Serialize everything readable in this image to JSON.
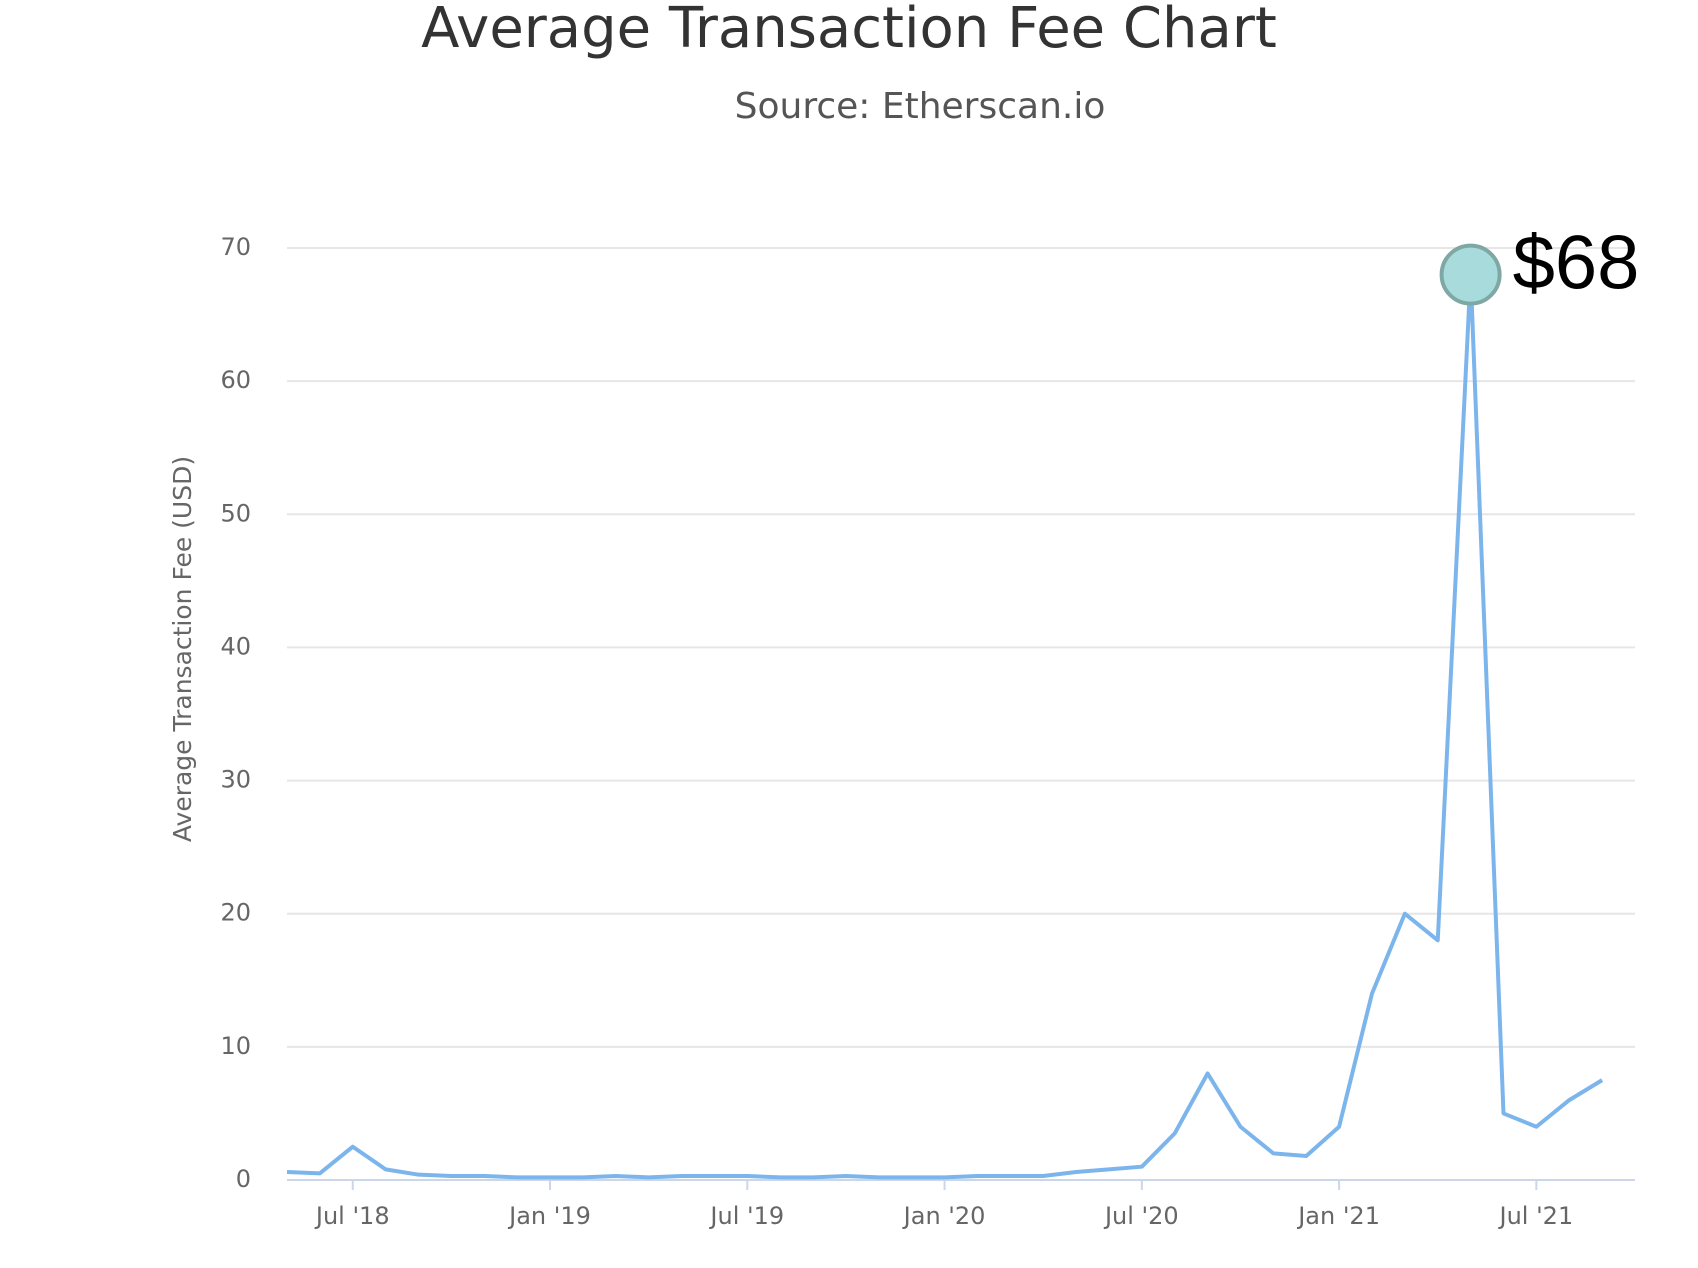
{
  "chart_data": {
    "type": "line",
    "title": "Average Transaction Fee Chart",
    "subtitle": "Source: Etherscan.io",
    "y_label": "Average Transaction Fee (USD)",
    "x": [
      "2018-05",
      "2018-06",
      "2018-07",
      "2018-08",
      "2018-09",
      "2018-10",
      "2018-11",
      "2018-12",
      "2019-01",
      "2019-02",
      "2019-03",
      "2019-04",
      "2019-05",
      "2019-06",
      "2019-07",
      "2019-08",
      "2019-09",
      "2019-10",
      "2019-11",
      "2019-12",
      "2020-01",
      "2020-02",
      "2020-03",
      "2020-04",
      "2020-05",
      "2020-06",
      "2020-07",
      "2020-08",
      "2020-09",
      "2020-10",
      "2020-11",
      "2020-12",
      "2021-01",
      "2021-02",
      "2021-03",
      "2021-04",
      "2021-05",
      "2021-06",
      "2021-07",
      "2021-08",
      "2021-09"
    ],
    "series": [
      {
        "name": "Average Transaction Fee",
        "color": "#7cb5ec",
        "values": [
          0.6,
          0.5,
          2.5,
          0.8,
          0.4,
          0.3,
          0.3,
          0.2,
          0.2,
          0.2,
          0.3,
          0.2,
          0.3,
          0.3,
          0.3,
          0.2,
          0.2,
          0.3,
          0.2,
          0.2,
          0.2,
          0.3,
          0.3,
          0.3,
          0.6,
          0.8,
          1.0,
          3.5,
          8,
          4,
          2,
          1.8,
          4,
          14,
          20,
          18,
          68,
          5,
          4,
          6,
          7.5
        ]
      }
    ],
    "xlim": [
      "2018-05",
      "2021-10"
    ],
    "xticks": [
      {
        "value": "2018-07",
        "label": "Jul '18"
      },
      {
        "value": "2019-01",
        "label": "Jan '19"
      },
      {
        "value": "2019-07",
        "label": "Jul '19"
      },
      {
        "value": "2020-01",
        "label": "Jan '20"
      },
      {
        "value": "2020-07",
        "label": "Jul '20"
      },
      {
        "value": "2021-01",
        "label": "Jan '21"
      },
      {
        "value": "2021-07",
        "label": "Jul '21"
      }
    ],
    "ylim": [
      0,
      70
    ],
    "yticks": [
      0,
      10,
      20,
      30,
      40,
      50,
      60,
      70
    ],
    "grid": true,
    "annotations": [
      {
        "x": "2021-05",
        "y": 68,
        "label": "$68",
        "color": "#a8dcdc"
      }
    ]
  }
}
